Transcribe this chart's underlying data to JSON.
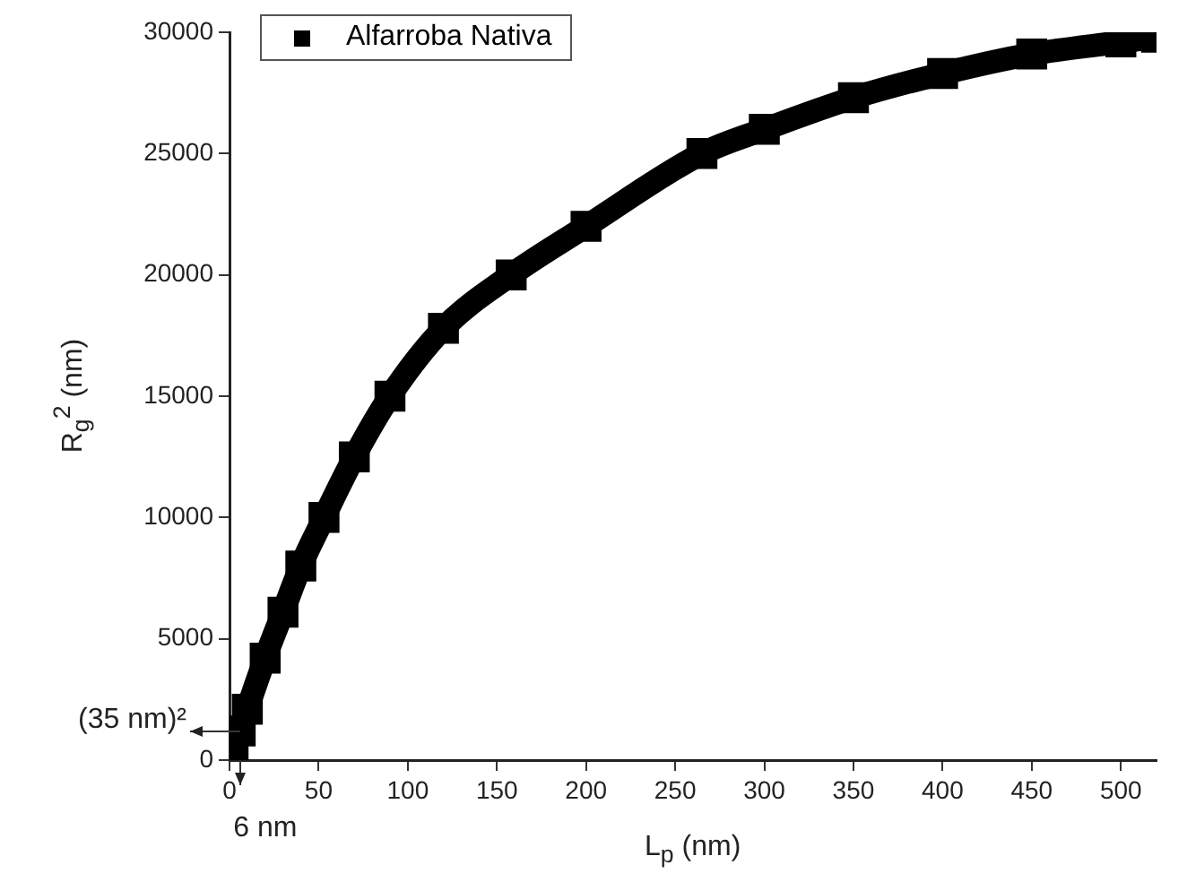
{
  "chart_data": {
    "type": "line",
    "xlabel": "L$_{p}$ (nm)",
    "ylabel": "R$_{g}$$^{2}$ (nm)",
    "x": [
      0,
      2,
      6,
      10,
      20,
      30,
      40,
      53,
      70,
      90,
      120,
      158,
      200,
      265,
      300,
      350,
      400,
      450,
      500,
      520
    ],
    "series": [
      {
        "name": "Alfarroba Nativa",
        "color": "#000000",
        "values": [
          0,
          400,
          1200,
          2100,
          4200,
          6100,
          8000,
          10000,
          12500,
          15000,
          17800,
          20000,
          22000,
          25000,
          26000,
          27300,
          28300,
          29100,
          29600,
          29800
        ]
      }
    ],
    "xlim": [
      0,
      520
    ],
    "xticks": [
      0,
      50,
      100,
      150,
      200,
      250,
      300,
      350,
      400,
      450,
      500
    ],
    "ylim": [
      0,
      30000
    ],
    "yticks": [
      0,
      5000,
      10000,
      15000,
      20000,
      25000,
      30000
    ],
    "grid": false,
    "legend": "top left",
    "marker": "square",
    "line_style": "solid",
    "annotations": [
      {
        "text": "(35 nm)²",
        "x": 6,
        "y": 1200
      },
      {
        "text": "6 nm",
        "x": 6,
        "y": 0
      }
    ]
  }
}
